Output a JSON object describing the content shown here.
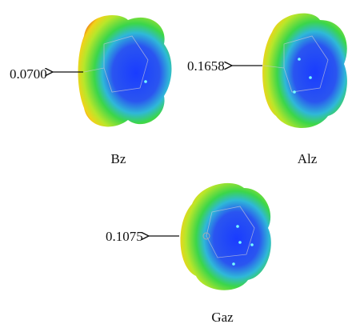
{
  "panels": [
    {
      "label": "Bz",
      "value": "0.0700"
    },
    {
      "label": "Alz",
      "value": "0.1658"
    },
    {
      "label": "Gaz",
      "value": "0.1075"
    }
  ]
}
